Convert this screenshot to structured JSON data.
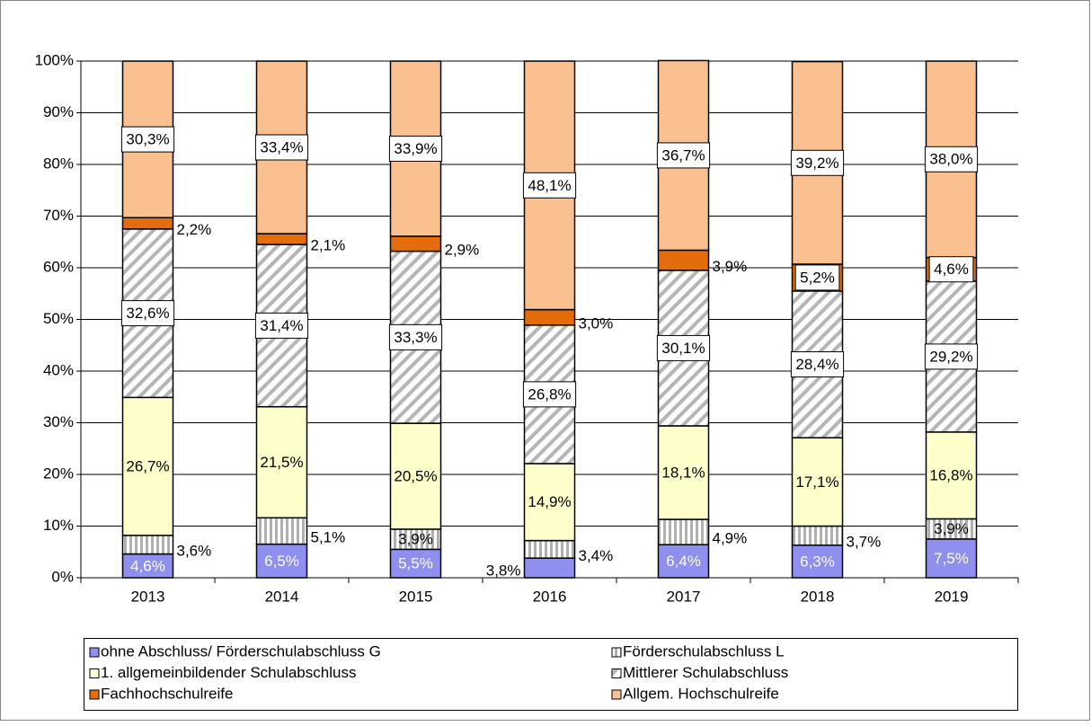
{
  "chart_data": {
    "type": "stacked-bar",
    "categories": [
      "2013",
      "2014",
      "2015",
      "2016",
      "2017",
      "2018",
      "2019"
    ],
    "ylim": [
      0,
      100
    ],
    "yticks": [
      {
        "value": 0,
        "label": "0%"
      },
      {
        "value": 10,
        "label": "10%"
      },
      {
        "value": 20,
        "label": "20%"
      },
      {
        "value": 30,
        "label": "30%"
      },
      {
        "value": 40,
        "label": "40%"
      },
      {
        "value": 50,
        "label": "50%"
      },
      {
        "value": 60,
        "label": "60%"
      },
      {
        "value": 70,
        "label": "70%"
      },
      {
        "value": 80,
        "label": "80%"
      },
      {
        "value": 90,
        "label": "90%"
      },
      {
        "value": 100,
        "label": "100%"
      }
    ],
    "grid": true,
    "series": [
      {
        "name": "ohne Abschluss/ Förderschulabschluss G",
        "color": "#8f8fef",
        "values": [
          4.6,
          6.5,
          5.5,
          3.8,
          6.4,
          6.3,
          7.5
        ],
        "value_labels": [
          "4,6%",
          "6,5%",
          "5,5%",
          "3,8%",
          "6,4%",
          "6,3%",
          "7,5%"
        ]
      },
      {
        "name": "Förderschulabschluss L",
        "color": "#909090",
        "pattern": "vertical",
        "values": [
          3.6,
          5.1,
          3.9,
          3.4,
          4.9,
          3.7,
          3.9
        ],
        "value_labels": [
          "3,6%",
          "5,1%",
          "3,9%",
          "3,4%",
          "4,9%",
          "3,7%",
          "3,9%"
        ]
      },
      {
        "name": "1. allgemeinbildender Schulabschluss",
        "color": "#ffffcc",
        "values": [
          26.7,
          21.5,
          20.5,
          14.9,
          18.1,
          17.1,
          16.8
        ],
        "value_labels": [
          "26,7%",
          "21,5%",
          "20,5%",
          "14,9%",
          "18,1%",
          "17,1%",
          "16,8%"
        ]
      },
      {
        "name": "Mittlerer Schulabschluss",
        "color": "#a0a0a0",
        "pattern": "diagonal",
        "values": [
          32.6,
          31.4,
          33.3,
          26.8,
          30.1,
          28.4,
          29.2
        ],
        "value_labels": [
          "32,6%",
          "31,4%",
          "33,3%",
          "26,8%",
          "30,1%",
          "28,4%",
          "29,2%"
        ]
      },
      {
        "name": "Fachhochschulreife",
        "color": "#e46c0a",
        "values": [
          2.2,
          2.1,
          2.9,
          3.0,
          3.9,
          5.2,
          4.6
        ],
        "value_labels": [
          "2,2%",
          "2,1%",
          "2,9%",
          "3,0%",
          "3,9%",
          "5,2%",
          "4,6%"
        ]
      },
      {
        "name": "Allgem. Hochschulreife",
        "color": "#fac090",
        "values": [
          30.3,
          33.4,
          33.9,
          48.1,
          36.7,
          39.2,
          38.0
        ],
        "value_labels": [
          "30,3%",
          "33,4%",
          "33,9%",
          "48,1%",
          "36,7%",
          "39,2%",
          "38,0%"
        ]
      }
    ]
  }
}
